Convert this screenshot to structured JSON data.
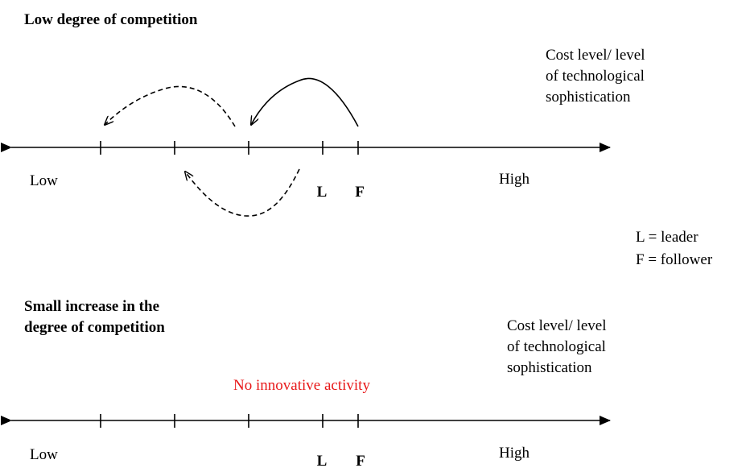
{
  "panels": [
    {
      "title": [
        "Low degree of competition"
      ],
      "axis_note": [
        "Cost level/ level",
        "of technological",
        "sophistication"
      ],
      "low": "Low",
      "high": "High",
      "leader": "L",
      "follower": "F"
    },
    {
      "title": [
        "Small increase in the",
        "degree of competition"
      ],
      "axis_note": [
        "Cost level/ level",
        "of technological",
        "sophistication"
      ],
      "low": "Low",
      "high": "High",
      "leader": "L",
      "follower": "F",
      "note": "No innovative activity"
    }
  ],
  "legend": [
    "L = leader",
    "F = follower"
  ]
}
